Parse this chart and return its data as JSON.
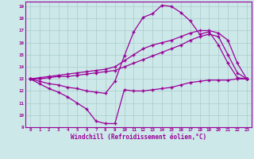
{
  "xlabel": "Windchill (Refroidissement éolien,°C)",
  "bg_color": "#cde8e8",
  "grid_color": "#aacccc",
  "line_color": "#990099",
  "xlim": [
    -0.5,
    23.5
  ],
  "ylim": [
    9,
    19.4
  ],
  "xticks": [
    0,
    1,
    2,
    3,
    4,
    5,
    6,
    7,
    8,
    9,
    10,
    11,
    12,
    13,
    14,
    15,
    16,
    17,
    18,
    19,
    20,
    21,
    22,
    23
  ],
  "yticks": [
    9,
    10,
    11,
    12,
    13,
    14,
    15,
    16,
    17,
    18,
    19
  ],
  "line1_x": [
    0,
    1,
    2,
    3,
    4,
    5,
    6,
    7,
    8,
    9,
    10,
    11,
    12,
    13,
    14,
    15,
    16,
    17,
    18,
    19,
    20,
    21,
    22,
    23
  ],
  "line1_y": [
    13.0,
    12.6,
    12.2,
    11.9,
    11.5,
    11.0,
    10.5,
    9.5,
    9.3,
    9.3,
    12.1,
    12.0,
    12.0,
    12.1,
    12.2,
    12.3,
    12.5,
    12.7,
    12.8,
    12.9,
    12.9,
    12.9,
    13.0,
    13.0
  ],
  "line2_x": [
    0,
    1,
    2,
    3,
    4,
    5,
    6,
    7,
    8,
    9,
    10,
    11,
    12,
    13,
    14,
    15,
    16,
    17,
    18,
    19,
    20,
    21,
    22,
    23
  ],
  "line2_y": [
    13.0,
    12.8,
    12.6,
    12.5,
    12.3,
    12.2,
    12.0,
    11.9,
    11.8,
    12.8,
    14.9,
    16.9,
    18.1,
    18.4,
    19.1,
    19.0,
    18.5,
    17.8,
    16.7,
    16.9,
    15.8,
    14.3,
    13.1,
    13.0
  ],
  "line3_x": [
    0,
    1,
    2,
    3,
    4,
    5,
    6,
    7,
    8,
    9,
    10,
    11,
    12,
    13,
    14,
    15,
    16,
    17,
    18,
    19,
    20,
    21,
    22,
    23
  ],
  "line3_y": [
    13.0,
    13.1,
    13.2,
    13.3,
    13.4,
    13.5,
    13.6,
    13.7,
    13.8,
    14.0,
    14.5,
    15.0,
    15.5,
    15.8,
    16.0,
    16.2,
    16.5,
    16.8,
    17.0,
    17.0,
    16.8,
    16.2,
    14.3,
    13.0
  ],
  "line4_x": [
    0,
    1,
    2,
    3,
    4,
    5,
    6,
    7,
    8,
    9,
    10,
    11,
    12,
    13,
    14,
    15,
    16,
    17,
    18,
    19,
    20,
    21,
    22,
    23
  ],
  "line4_y": [
    13.0,
    13.0,
    13.1,
    13.2,
    13.2,
    13.3,
    13.4,
    13.5,
    13.6,
    13.7,
    14.0,
    14.3,
    14.6,
    14.9,
    15.2,
    15.5,
    15.8,
    16.2,
    16.5,
    16.7,
    16.5,
    15.0,
    13.5,
    13.0
  ]
}
